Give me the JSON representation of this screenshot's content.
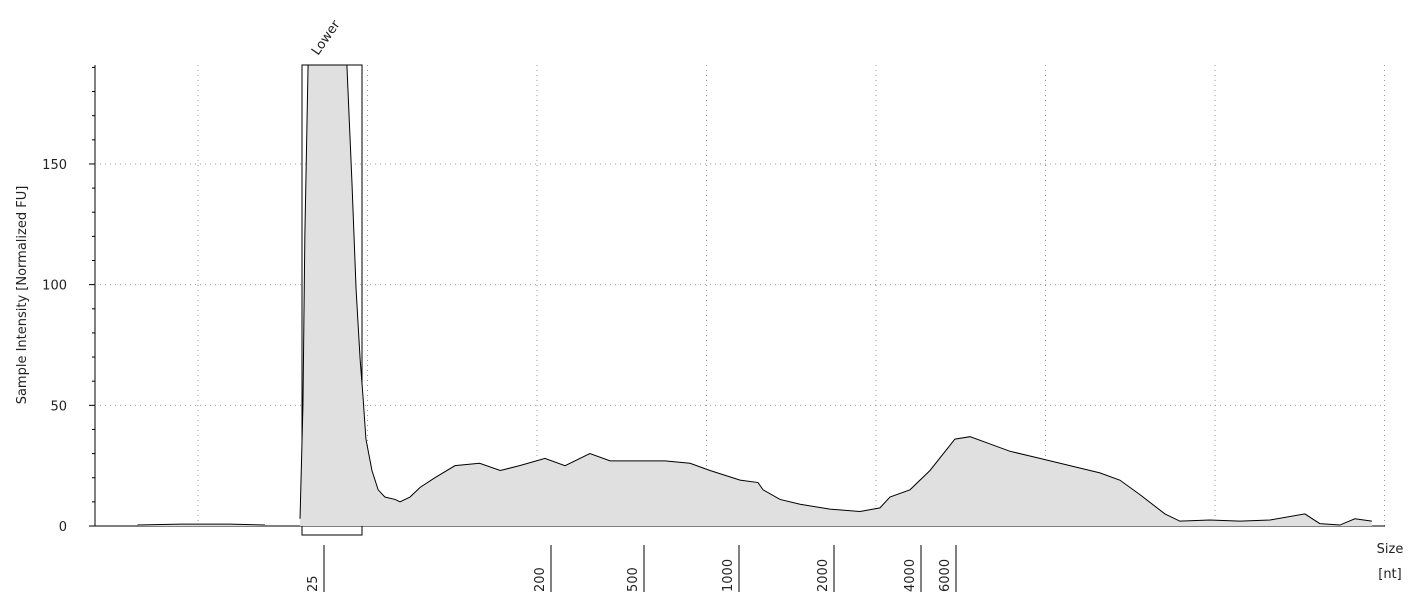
{
  "chart_data": {
    "type": "area",
    "ylabel": "Sample Intensity [Normalized FU]",
    "xlabel": [
      "Size",
      "[nt]"
    ],
    "annotations": [
      {
        "text": "Lower"
      }
    ],
    "ylim": [
      0,
      191
    ],
    "yticks": [
      0,
      50,
      100,
      150
    ],
    "xticks": [
      25,
      200,
      500,
      1000,
      2000,
      4000,
      6000
    ],
    "x": [
      5,
      7.4,
      11.7,
      16.1,
      20,
      22.2,
      22.8,
      23.2,
      23.9,
      30,
      34.1,
      35.7,
      37.1,
      38.5,
      39.5,
      40.6,
      42.9,
      45.4,
      48.3,
      53,
      55.5,
      60.8,
      66.7,
      76.4,
      91.8,
      115,
      139,
      166,
      210,
      256,
      327,
      399,
      526,
      631,
      758,
      877,
      1092,
      1245,
      1291,
      1462,
      1692,
      2113,
      2686,
      3148,
      3410,
      4000,
      5043,
      6730,
      8020,
      10100,
      12700,
      18000,
      25500,
      36100,
      45500,
      57400,
      76700,
      91200,
      129000,
      183000,
      259000,
      388000,
      461000,
      582000,
      692000,
      843000
    ],
    "values": [
      0.4,
      0.8,
      0.8,
      0.4,
      null,
      3,
      50,
      120,
      191,
      191,
      191,
      143,
      98,
      69,
      54,
      36,
      23,
      15,
      12,
      11,
      10,
      12,
      16,
      20,
      25,
      26,
      23,
      25,
      28,
      25,
      30,
      27,
      27,
      27,
      26,
      23,
      19,
      18,
      15,
      11,
      9,
      7,
      6,
      7.5,
      12,
      15,
      23,
      36,
      37,
      34,
      31,
      28,
      25,
      22,
      19,
      13,
      5,
      2,
      2.5,
      2,
      2.5,
      5,
      1,
      0.4,
      3,
      2
    ],
    "fill": "#e0e0e0",
    "line_color": "#000000",
    "grid": true
  }
}
